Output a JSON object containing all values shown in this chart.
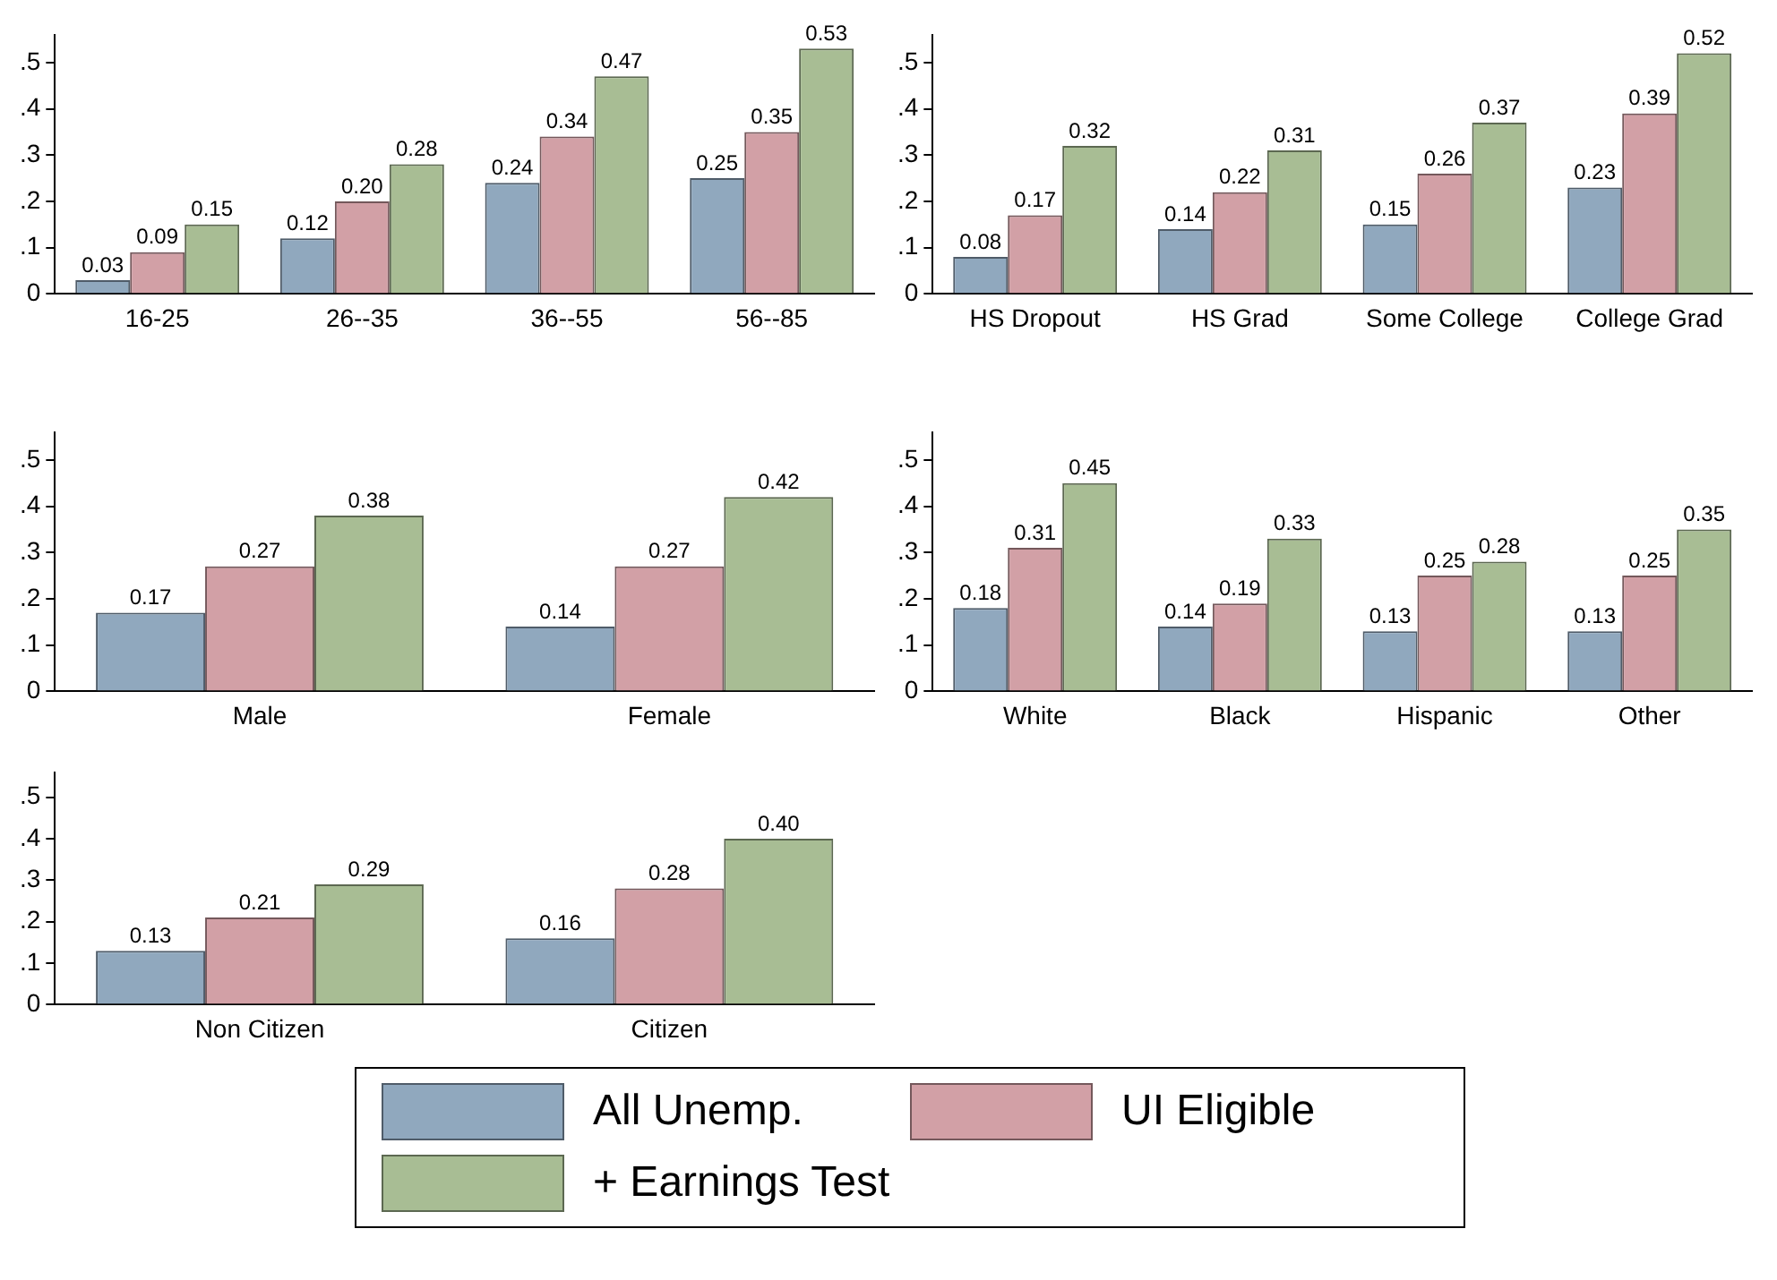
{
  "chart_data": [
    {
      "type": "bar",
      "categories": [
        "16-25",
        "26--35",
        "36--55",
        "56--85"
      ],
      "ylim": [
        0,
        0.56
      ],
      "yticks": [
        {
          "value": 0,
          "label": "0"
        },
        {
          "value": 0.1,
          "label": ".1"
        },
        {
          "value": 0.2,
          "label": ".2"
        },
        {
          "value": 0.3,
          "label": ".3"
        },
        {
          "value": 0.4,
          "label": ".4"
        },
        {
          "value": 0.5,
          "label": ".5"
        }
      ],
      "grid": false,
      "legend": "bottom",
      "series": [
        {
          "name": "All Unemp.",
          "color": "#90a8be",
          "values": [
            0.03,
            0.12,
            0.24,
            0.25
          ],
          "value_labels": [
            "0.03",
            "0.12",
            "0.24",
            "0.25"
          ]
        },
        {
          "name": "UI Eligible",
          "color": "#d2a0a6",
          "values": [
            0.09,
            0.2,
            0.34,
            0.35
          ],
          "value_labels": [
            "0.09",
            "0.20",
            "0.34",
            "0.35"
          ]
        },
        {
          "name": "+ Earnings Test",
          "color": "#a8bd94",
          "values": [
            0.15,
            0.28,
            0.47,
            0.53
          ],
          "value_labels": [
            "0.15",
            "0.28",
            "0.47",
            "0.53"
          ]
        }
      ]
    },
    {
      "type": "bar",
      "categories": [
        "HS Dropout",
        "HS Grad",
        "Some College",
        "College Grad"
      ],
      "ylim": [
        0,
        0.56
      ],
      "yticks": [
        {
          "value": 0,
          "label": "0"
        },
        {
          "value": 0.1,
          "label": ".1"
        },
        {
          "value": 0.2,
          "label": ".2"
        },
        {
          "value": 0.3,
          "label": ".3"
        },
        {
          "value": 0.4,
          "label": ".4"
        },
        {
          "value": 0.5,
          "label": ".5"
        }
      ],
      "grid": false,
      "series": [
        {
          "color": "#90a8be",
          "values": [
            0.08,
            0.14,
            0.15,
            0.23
          ],
          "value_labels": [
            "0.08",
            "0.14",
            "0.15",
            "0.23"
          ]
        },
        {
          "color": "#d2a0a6",
          "values": [
            0.17,
            0.22,
            0.26,
            0.39
          ],
          "value_labels": [
            "0.17",
            "0.22",
            "0.26",
            "0.39"
          ]
        },
        {
          "color": "#a8bd94",
          "values": [
            0.32,
            0.31,
            0.37,
            0.52
          ],
          "value_labels": [
            "0.32",
            "0.31",
            "0.37",
            "0.52"
          ]
        }
      ]
    },
    {
      "type": "bar",
      "categories": [
        "Male",
        "Female"
      ],
      "ylim": [
        0,
        0.56
      ],
      "yticks": [
        {
          "value": 0,
          "label": "0"
        },
        {
          "value": 0.1,
          "label": ".1"
        },
        {
          "value": 0.2,
          "label": ".2"
        },
        {
          "value": 0.3,
          "label": ".3"
        },
        {
          "value": 0.4,
          "label": ".4"
        },
        {
          "value": 0.5,
          "label": ".5"
        }
      ],
      "grid": false,
      "series": [
        {
          "color": "#90a8be",
          "values": [
            0.17,
            0.14
          ],
          "value_labels": [
            "0.17",
            "0.14"
          ]
        },
        {
          "color": "#d2a0a6",
          "values": [
            0.27,
            0.27
          ],
          "value_labels": [
            "0.27",
            "0.27"
          ]
        },
        {
          "color": "#a8bd94",
          "values": [
            0.38,
            0.42
          ],
          "value_labels": [
            "0.38",
            "0.42"
          ]
        }
      ]
    },
    {
      "type": "bar",
      "categories": [
        "White",
        "Black",
        "Hispanic",
        "Other"
      ],
      "ylim": [
        0,
        0.56
      ],
      "yticks": [
        {
          "value": 0,
          "label": "0"
        },
        {
          "value": 0.1,
          "label": ".1"
        },
        {
          "value": 0.2,
          "label": ".2"
        },
        {
          "value": 0.3,
          "label": ".3"
        },
        {
          "value": 0.4,
          "label": ".4"
        },
        {
          "value": 0.5,
          "label": ".5"
        }
      ],
      "grid": false,
      "series": [
        {
          "color": "#90a8be",
          "values": [
            0.18,
            0.14,
            0.13,
            0.13
          ],
          "value_labels": [
            "0.18",
            "0.14",
            "0.13",
            "0.13"
          ]
        },
        {
          "color": "#d2a0a6",
          "values": [
            0.31,
            0.19,
            0.25,
            0.25
          ],
          "value_labels": [
            "0.31",
            "0.19",
            "0.25",
            "0.25"
          ]
        },
        {
          "color": "#a8bd94",
          "values": [
            0.45,
            0.33,
            0.28,
            0.35
          ],
          "value_labels": [
            "0.45",
            "0.33",
            "0.28",
            "0.35"
          ]
        }
      ]
    },
    {
      "type": "bar",
      "categories": [
        "Non Citizen",
        "Citizen"
      ],
      "ylim": [
        0,
        0.56
      ],
      "yticks": [
        {
          "value": 0,
          "label": "0"
        },
        {
          "value": 0.1,
          "label": ".1"
        },
        {
          "value": 0.2,
          "label": ".2"
        },
        {
          "value": 0.3,
          "label": ".3"
        },
        {
          "value": 0.4,
          "label": ".4"
        },
        {
          "value": 0.5,
          "label": ".5"
        }
      ],
      "grid": false,
      "series": [
        {
          "color": "#90a8be",
          "values": [
            0.13,
            0.16
          ],
          "value_labels": [
            "0.13",
            "0.16"
          ]
        },
        {
          "color": "#d2a0a6",
          "values": [
            0.21,
            0.28
          ],
          "value_labels": [
            "0.21",
            "0.28"
          ]
        },
        {
          "color": "#a8bd94",
          "values": [
            0.29,
            0.4
          ],
          "value_labels": [
            "0.29",
            "0.40"
          ]
        }
      ]
    }
  ]
}
